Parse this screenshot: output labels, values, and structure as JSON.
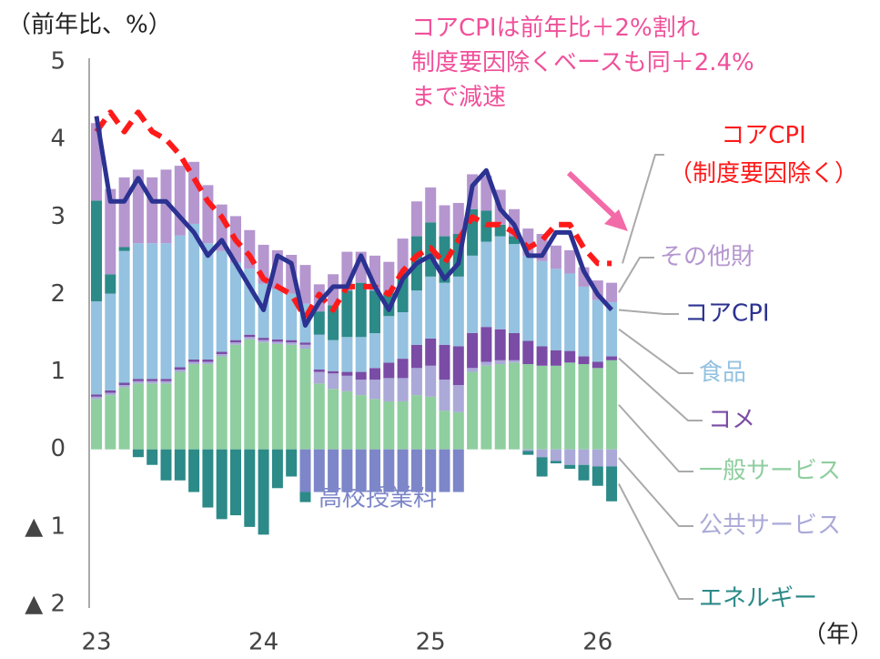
{
  "chart_data": {
    "type": "bar",
    "y_label": "（前年比、%）",
    "x_label": "（年）",
    "annotation": "コアCPIは前年比＋2%割れ\n制度要因除くベースも同＋2.4%\nまで減速",
    "categories": [
      "23",
      null,
      null,
      null,
      null,
      null,
      null,
      null,
      null,
      null,
      null,
      null,
      "24",
      null,
      null,
      null,
      null,
      null,
      null,
      null,
      null,
      null,
      null,
      null,
      "25",
      null,
      null,
      null,
      null,
      null,
      null,
      null,
      null,
      null,
      null,
      null,
      "26",
      null
    ],
    "ylim": [
      -2,
      5
    ],
    "yticks": [
      {
        "value": -2,
        "label": "▲ 2"
      },
      {
        "value": -1,
        "label": "▲ 1"
      },
      0,
      1,
      2,
      3,
      4,
      5
    ],
    "series": [
      {
        "name": "一般サービス",
        "color": "#8fce9f",
        "values": [
          0.65,
          0.7,
          0.8,
          0.85,
          0.85,
          0.85,
          1.0,
          1.1,
          1.1,
          1.2,
          1.35,
          1.42,
          1.38,
          1.36,
          1.35,
          1.3,
          0.85,
          0.78,
          0.75,
          0.7,
          0.65,
          0.62,
          0.62,
          0.7,
          0.68,
          0.5,
          0.48,
          1.0,
          1.08,
          1.1,
          1.12,
          1.1,
          1.08,
          1.08,
          1.12,
          1.1,
          1.05,
          1.15
        ]
      },
      {
        "name": "公共サービス",
        "color": "#aaa9d8",
        "values": [
          0.03,
          0.03,
          0.03,
          0.03,
          0.03,
          0.03,
          0.03,
          0.03,
          0.03,
          0.03,
          0.03,
          0.03,
          0.03,
          0.03,
          0.03,
          0.05,
          0.15,
          0.2,
          0.2,
          0.2,
          0.25,
          0.3,
          0.3,
          0.35,
          0.4,
          0.4,
          0.35,
          0.05,
          0.05,
          0.05,
          0.03,
          -0.02,
          -0.1,
          -0.15,
          -0.2,
          -0.2,
          -0.22,
          -0.22
        ]
      },
      {
        "name": "高校授業料",
        "color": "#7c86c8",
        "values": [
          null,
          null,
          null,
          null,
          null,
          null,
          null,
          null,
          null,
          null,
          null,
          null,
          null,
          null,
          null,
          -0.55,
          -0.55,
          -0.55,
          -0.55,
          -0.55,
          -0.55,
          -0.55,
          -0.55,
          -0.55,
          -0.55,
          -0.55,
          -0.55,
          null,
          null,
          null,
          null,
          null,
          null,
          null,
          null,
          null,
          null,
          null
        ]
      },
      {
        "name": "コメ",
        "color": "#7a4ca6",
        "values": [
          0.03,
          0.03,
          0.03,
          0.03,
          0.03,
          0.03,
          0.03,
          0.03,
          0.03,
          0.03,
          0.03,
          0.03,
          0.03,
          0.03,
          0.03,
          0.03,
          0.03,
          0.03,
          0.05,
          0.1,
          0.15,
          0.2,
          0.25,
          0.3,
          0.35,
          0.45,
          0.5,
          0.45,
          0.45,
          0.4,
          0.35,
          0.3,
          0.25,
          0.2,
          0.15,
          0.1,
          0.08,
          0.05
        ]
      },
      {
        "name": "食品",
        "color": "#94c2e0",
        "values": [
          1.2,
          1.25,
          1.7,
          1.75,
          1.75,
          1.75,
          1.7,
          1.75,
          1.5,
          1.3,
          1.0,
          0.85,
          0.7,
          0.65,
          0.6,
          0.5,
          0.45,
          0.4,
          0.45,
          0.45,
          0.45,
          0.6,
          0.6,
          0.7,
          0.8,
          0.8,
          0.9,
          1.0,
          1.1,
          1.2,
          1.15,
          1.1,
          1.1,
          1.05,
          1.0,
          0.9,
          0.8,
          0.7
        ]
      },
      {
        "name": "エネルギー",
        "color": "#2c8a88",
        "values": [
          1.3,
          0.25,
          0.05,
          -0.1,
          -0.2,
          -0.4,
          -0.4,
          -0.55,
          -0.75,
          -0.9,
          -0.85,
          -1.0,
          -1.1,
          -0.5,
          -0.35,
          -0.13,
          0.3,
          0.45,
          0.6,
          0.7,
          0.55,
          0.3,
          0.5,
          0.7,
          0.7,
          0.6,
          0.55,
          0.6,
          0.4,
          0.15,
          0.1,
          -0.05,
          -0.25,
          -0.03,
          -0.05,
          -0.2,
          -0.25,
          -0.45
        ]
      },
      {
        "name": "その他財",
        "color": "#b596cf",
        "values": [
          1.0,
          1.1,
          0.9,
          0.95,
          0.85,
          0.95,
          0.9,
          0.8,
          0.75,
          0.6,
          0.6,
          0.5,
          0.5,
          0.5,
          0.5,
          0.5,
          0.35,
          0.4,
          0.5,
          0.4,
          0.45,
          0.4,
          0.45,
          0.45,
          0.45,
          0.4,
          0.4,
          0.45,
          0.45,
          0.45,
          0.35,
          0.35,
          0.35,
          0.3,
          0.3,
          0.25,
          0.25,
          0.25
        ]
      },
      {
        "name": "コアCPI\n（制度要因除く）",
        "color": "#ff1a1a",
        "type": "line",
        "style": "dashed",
        "values": [
          4.1,
          4.35,
          4.1,
          4.35,
          4.1,
          4.0,
          3.8,
          3.5,
          3.2,
          3.0,
          2.7,
          2.5,
          2.2,
          2.1,
          2.0,
          1.7,
          2.0,
          1.8,
          2.1,
          2.1,
          2.1,
          2.0,
          2.3,
          2.5,
          2.6,
          2.4,
          2.7,
          3.0,
          2.9,
          2.9,
          2.8,
          2.6,
          2.7,
          2.9,
          2.9,
          2.6,
          2.4,
          2.4
        ]
      },
      {
        "name": "コアCPI",
        "color": "#2b3291",
        "type": "line",
        "style": "solid",
        "values": [
          4.3,
          3.2,
          3.2,
          3.5,
          3.2,
          3.2,
          3.0,
          2.8,
          2.5,
          2.7,
          2.4,
          2.1,
          1.8,
          2.5,
          2.4,
          1.6,
          1.9,
          2.1,
          2.1,
          2.5,
          2.1,
          1.8,
          2.2,
          2.4,
          2.5,
          2.2,
          2.4,
          3.4,
          3.6,
          3.1,
          2.9,
          2.5,
          2.5,
          2.8,
          2.8,
          2.3,
          2.0,
          1.8
        ]
      }
    ]
  }
}
